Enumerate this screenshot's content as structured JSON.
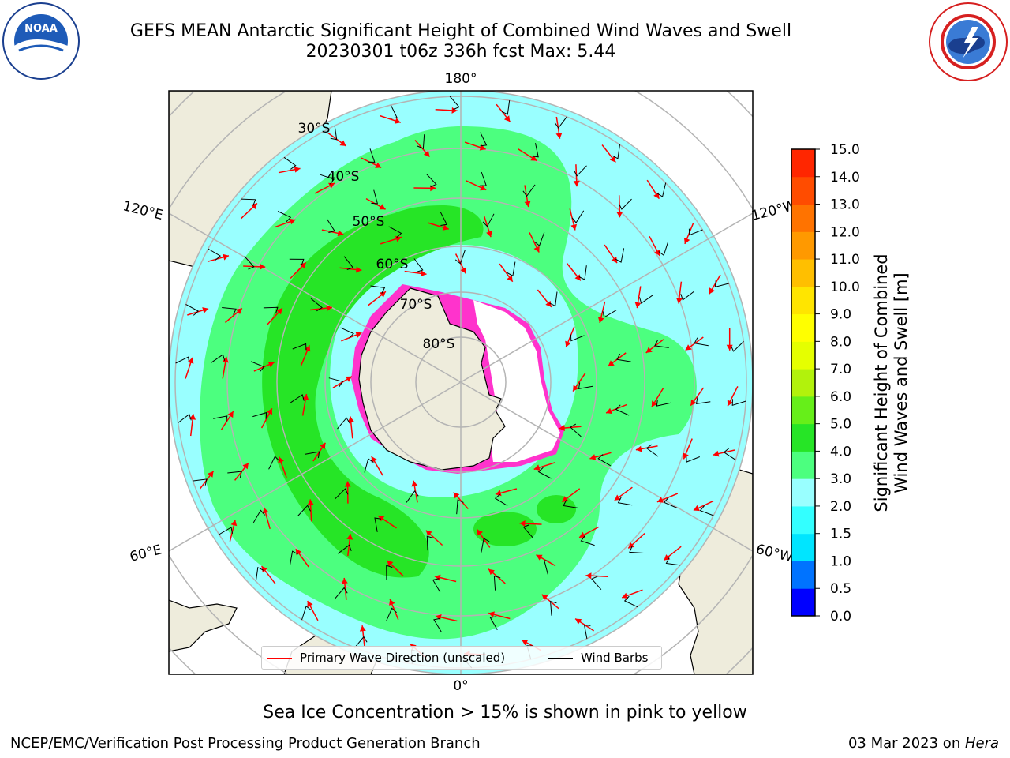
{
  "header": {
    "title_line1": "GEFS MEAN Antarctic Significant Height of Combined Wind Waves and Swell",
    "title_line2": "20230301 t06z 336h fcst   Max: 5.44"
  },
  "logos": {
    "left": {
      "icon": "noaa-logo-icon",
      "text": "NOAA",
      "ring_text": "NATIONAL OCEANIC AND ATMOSPHERIC ADMINISTRATION · U.S. DEPARTMENT OF COMMERCE"
    },
    "right": {
      "icon": "nws-logo-icon",
      "ring_text": "NATIONAL WEATHER SERVICE"
    }
  },
  "map": {
    "projection": "south-polar-stereographic",
    "longitude_labels": [
      "180°",
      "120°E",
      "120°W",
      "60°E",
      "60°W",
      "0°"
    ],
    "latitude_labels": [
      "30°S",
      "40°S",
      "50°S",
      "60°S",
      "70°S",
      "80°S"
    ],
    "colors": {
      "land": "#eeecdc",
      "ocean_2_3": "#99ffff",
      "ocean_3_4": "#4cff7f",
      "ocean_4_5": "#26e526",
      "ice": "#ff33cc",
      "arrow": "#ff0000",
      "barb": "#000000",
      "grid": "#b4b4b4"
    }
  },
  "legend": {
    "primary_wave_label": "Primary Wave Direction (unscaled)",
    "primary_wave_color": "#ff0000",
    "wind_barbs_label": "Wind Barbs",
    "wind_barbs_color": "#000000"
  },
  "colorbar": {
    "label_line1": "Significant Height of Combined",
    "label_line2": "Wind Waves and Swell [m]",
    "ticks": [
      "0.0",
      "0.5",
      "1.0",
      "1.5",
      "2.0",
      "3.0",
      "4.0",
      "5.0",
      "6.0",
      "7.0",
      "8.0",
      "9.0",
      "10.0",
      "11.0",
      "12.0",
      "13.0",
      "14.0",
      "15.0"
    ],
    "colors": [
      "#0000ff",
      "#0073ff",
      "#00e5ff",
      "#33ffff",
      "#99ffff",
      "#4cff7f",
      "#26e526",
      "#66ef19",
      "#b2f20c",
      "#e5ff00",
      "#ffff00",
      "#ffe500",
      "#ffbf00",
      "#ff9900",
      "#ff7300",
      "#ff4c00",
      "#ff2600"
    ]
  },
  "footer": {
    "caption": "Sea Ice Concentration > 15% is shown in pink to yellow",
    "left": "NCEP/EMC/Verification Post Processing Product Generation Branch",
    "date": "03 Mar 2023 on ",
    "machine": "Hera"
  }
}
